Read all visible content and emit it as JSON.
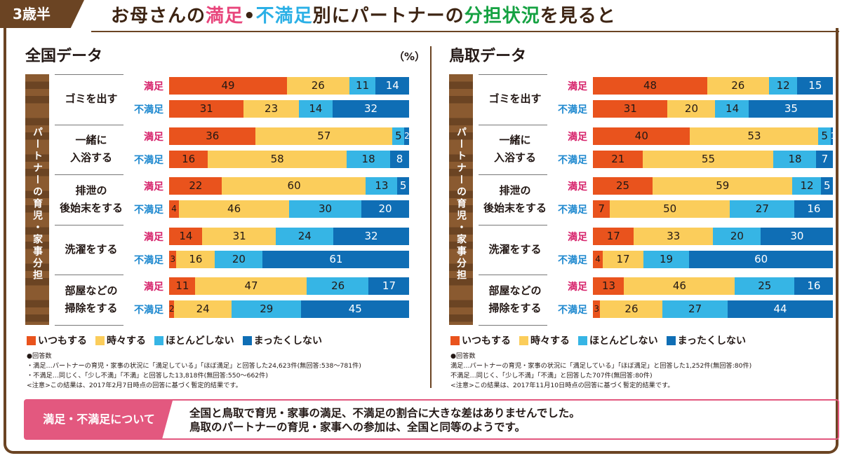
{
  "header": {
    "age_badge": "3歳半",
    "headline": [
      {
        "text": "お母さんの",
        "color": "#3d2413"
      },
      {
        "text": "満足",
        "color": "#e8467c"
      },
      {
        "text": "•",
        "color": "#3d2413"
      },
      {
        "text": "不満足",
        "color": "#2bb0e6"
      },
      {
        "text": "別にパートナーの",
        "color": "#3d2413"
      },
      {
        "text": "分担状況",
        "color": "#15a242"
      },
      {
        "text": "を見ると",
        "color": "#3d2413"
      }
    ]
  },
  "colors": {
    "always": "#e9531d",
    "sometimes": "#fbcd5b",
    "rarely": "#36b5e5",
    "never": "#0f6eb5",
    "satisfied_label": "#d6216a",
    "unsatisfied_label": "#1d88cf"
  },
  "vertical_label": "パートナーの育児・家事分担",
  "row_labels": {
    "satisfied": "満足",
    "unsatisfied": "不満足"
  },
  "legend": [
    "いつもする",
    "時々する",
    "ほとんどしない",
    "まったくしない"
  ],
  "summary": {
    "heading": "満足・不満足について",
    "lines": [
      "全国と鳥取で育児・家事の満足、不満足の割合に大きな差はありませんでした。",
      "鳥取のパートナーの育児・家事への参加は、全国と同等のようです。"
    ]
  },
  "chart_data": [
    {
      "type": "bar",
      "stacked": true,
      "orientation": "horizontal",
      "title": "全国データ",
      "unit": "（%）",
      "series_names": [
        "いつもする",
        "時々する",
        "ほとんどしない",
        "まったくしない"
      ],
      "categories": [
        {
          "label": [
            "ゴミを出す"
          ],
          "satisfied": [
            49,
            26,
            11,
            14
          ],
          "unsatisfied": [
            31,
            23,
            14,
            32
          ]
        },
        {
          "label": [
            "一緒に",
            "入浴する"
          ],
          "satisfied": [
            36,
            57,
            5,
            2
          ],
          "unsatisfied": [
            16,
            58,
            18,
            8
          ]
        },
        {
          "label": [
            "排泄の",
            "後始末をする"
          ],
          "satisfied": [
            22,
            60,
            13,
            5
          ],
          "unsatisfied": [
            4,
            46,
            30,
            20
          ]
        },
        {
          "label": [
            "洗濯をする"
          ],
          "satisfied": [
            14,
            31,
            24,
            32
          ],
          "unsatisfied": [
            3,
            16,
            20,
            61
          ]
        },
        {
          "label": [
            "部屋などの",
            "掃除をする"
          ],
          "satisfied": [
            11,
            47,
            26,
            17
          ],
          "unsatisfied": [
            2,
            24,
            29,
            45
          ]
        }
      ],
      "notes": [
        "●回答数",
        "・満足…パートナーの育児・家事の状況に「満足している」「ほぼ満足」と回答した24,623件(無回答:538〜781件)",
        "・不満足…同じく、「少し不満」「不満」と回答した13,818件(無回答:550〜662件)",
        "<注意>この結果は、2017年2月7日時点の回答に基づく暫定的結果です。"
      ]
    },
    {
      "type": "bar",
      "stacked": true,
      "orientation": "horizontal",
      "title": "鳥取データ",
      "unit": "",
      "series_names": [
        "いつもする",
        "時々する",
        "ほとんどしない",
        "まったくしない"
      ],
      "categories": [
        {
          "label": [
            "ゴミを出す"
          ],
          "satisfied": [
            48,
            26,
            12,
            15
          ],
          "unsatisfied": [
            31,
            20,
            14,
            35
          ]
        },
        {
          "label": [
            "一緒に",
            "入浴する"
          ],
          "satisfied": [
            40,
            53,
            5,
            1
          ],
          "unsatisfied": [
            21,
            55,
            18,
            7
          ]
        },
        {
          "label": [
            "排泄の",
            "後始末をする"
          ],
          "satisfied": [
            25,
            59,
            12,
            5
          ],
          "unsatisfied": [
            7,
            50,
            27,
            16
          ]
        },
        {
          "label": [
            "洗濯をする"
          ],
          "satisfied": [
            17,
            33,
            20,
            30
          ],
          "unsatisfied": [
            4,
            17,
            19,
            60
          ]
        },
        {
          "label": [
            "部屋などの",
            "掃除をする"
          ],
          "satisfied": [
            13,
            46,
            25,
            16
          ],
          "unsatisfied": [
            3,
            26,
            27,
            44
          ]
        }
      ],
      "notes": [
        "●回答数",
        "満足…パートナーの育児・家事の状況に「満足している」「ほぼ満足」と回答した1,252件(無回答:80件)",
        "不満足…同じく、「少し不満」「不満」と回答した707件(無回答:80件)",
        "<注意>この結果は、2017年11月10日時点の回答に基づく暫定的結果です。"
      ]
    }
  ]
}
